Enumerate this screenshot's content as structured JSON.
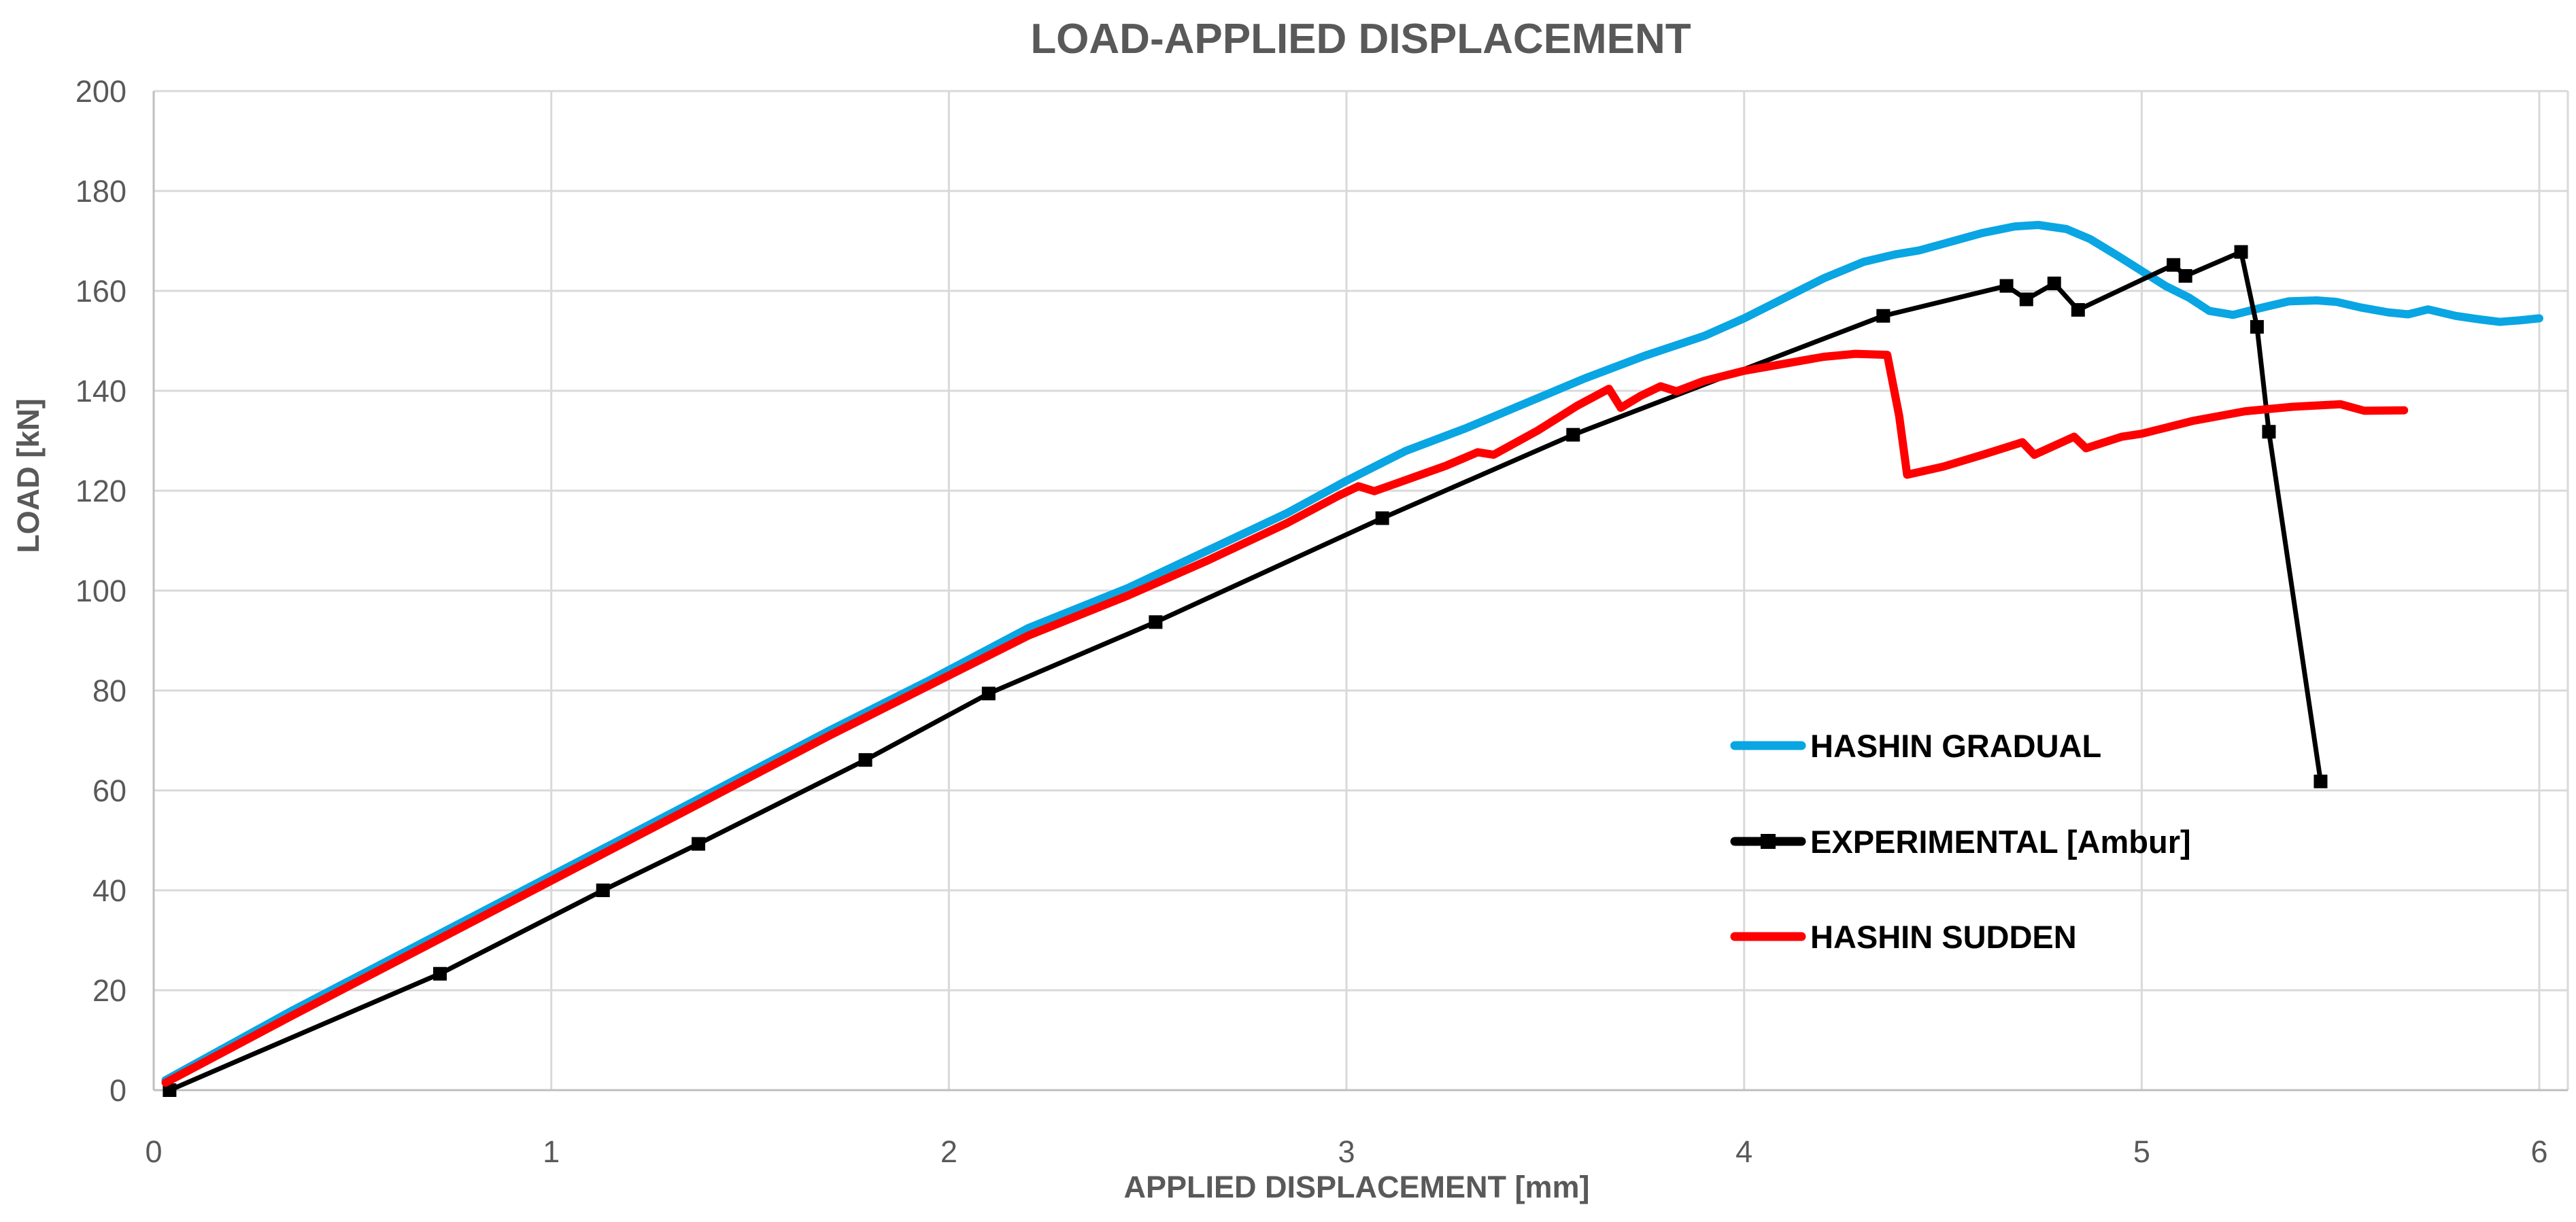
{
  "title": "LOAD-APPLIED DISPLACEMENT",
  "colors": {
    "background": "#ffffff",
    "gridline": "#d9d9d9",
    "axis_line": "#bfbfbf",
    "text_gray": "#595959",
    "series_blue": "#0aa5e3",
    "series_black": "#000000",
    "series_red": "#ff0000"
  },
  "chart_data": {
    "type": "line",
    "title": "LOAD-APPLIED DISPLACEMENT",
    "xlabel": "APPLIED DISPLACEMENT [mm]",
    "ylabel": "LOAD [kN]",
    "xlim": [
      0,
      6
    ],
    "ylim": [
      0,
      200
    ],
    "x_ticks": [
      0,
      1,
      2,
      3,
      4,
      5,
      6
    ],
    "y_ticks": [
      0,
      20,
      40,
      60,
      80,
      100,
      120,
      140,
      160,
      180,
      200
    ],
    "grid": true,
    "legend_position": "inside-right",
    "series": [
      {
        "name": "HASHIN GRADUAL",
        "color": "#0aa5e3",
        "marker": "none",
        "stroke_width": 12,
        "points": [
          [
            0.03,
            2
          ],
          [
            0.35,
            16
          ],
          [
            0.7,
            30.5
          ],
          [
            1.05,
            45
          ],
          [
            1.4,
            59.5
          ],
          [
            1.7,
            72
          ],
          [
            1.95,
            82
          ],
          [
            2.2,
            92.5
          ],
          [
            2.45,
            100.5
          ],
          [
            2.65,
            108
          ],
          [
            2.85,
            115.5
          ],
          [
            3.0,
            122
          ],
          [
            3.15,
            128
          ],
          [
            3.3,
            132.5
          ],
          [
            3.45,
            137.5
          ],
          [
            3.6,
            142.5
          ],
          [
            3.75,
            147
          ],
          [
            3.9,
            151
          ],
          [
            4.0,
            154.5
          ],
          [
            4.1,
            158.5
          ],
          [
            4.2,
            162.5
          ],
          [
            4.3,
            165.8
          ],
          [
            4.38,
            167.3
          ],
          [
            4.44,
            168.1
          ],
          [
            4.5,
            169.4
          ],
          [
            4.6,
            171.6
          ],
          [
            4.68,
            172.9
          ],
          [
            4.74,
            173.2
          ],
          [
            4.81,
            172.4
          ],
          [
            4.87,
            170.4
          ],
          [
            4.94,
            167
          ],
          [
            5.0,
            164
          ],
          [
            5.06,
            161
          ],
          [
            5.12,
            158.6
          ],
          [
            5.17,
            156
          ],
          [
            5.23,
            155.2
          ],
          [
            5.3,
            156.6
          ],
          [
            5.37,
            157.9
          ],
          [
            5.44,
            158.1
          ],
          [
            5.49,
            157.8
          ],
          [
            5.55,
            156.7
          ],
          [
            5.62,
            155.7
          ],
          [
            5.67,
            155.3
          ],
          [
            5.72,
            156.3
          ],
          [
            5.79,
            155
          ],
          [
            5.85,
            154.3
          ],
          [
            5.9,
            153.8
          ],
          [
            5.95,
            154.1
          ],
          [
            6.0,
            154.5
          ]
        ]
      },
      {
        "name": "EXPERIMENTAL [Ambur]",
        "color": "#000000",
        "marker": "square",
        "stroke_width": 7,
        "points": [
          [
            0.04,
            0
          ],
          [
            0.72,
            23.3
          ],
          [
            1.13,
            40
          ],
          [
            1.37,
            49.3
          ],
          [
            1.79,
            66.1
          ],
          [
            2.1,
            79.4
          ],
          [
            2.52,
            93.7
          ],
          [
            3.09,
            114.5
          ],
          [
            3.57,
            131.2
          ],
          [
            4.35,
            155
          ],
          [
            4.66,
            161
          ],
          [
            4.71,
            158.3
          ],
          [
            4.78,
            161.5
          ],
          [
            4.84,
            156.2
          ],
          [
            5.08,
            165.2
          ],
          [
            5.11,
            163
          ],
          [
            5.25,
            167.8
          ],
          [
            5.29,
            152.8
          ],
          [
            5.32,
            131.8
          ],
          [
            5.45,
            61.8
          ]
        ]
      },
      {
        "name": "HASHIN SUDDEN",
        "color": "#ff0000",
        "marker": "none",
        "stroke_width": 12,
        "points": [
          [
            0.03,
            1.5
          ],
          [
            0.35,
            15
          ],
          [
            0.7,
            29.5
          ],
          [
            1.05,
            44
          ],
          [
            1.4,
            58.5
          ],
          [
            1.7,
            71
          ],
          [
            1.95,
            81
          ],
          [
            2.2,
            91
          ],
          [
            2.45,
            99
          ],
          [
            2.65,
            106
          ],
          [
            2.85,
            113.5
          ],
          [
            2.98,
            119
          ],
          [
            3.03,
            120.9
          ],
          [
            3.07,
            119.9
          ],
          [
            3.12,
            121.3
          ],
          [
            3.25,
            125
          ],
          [
            3.33,
            127.7
          ],
          [
            3.37,
            127.2
          ],
          [
            3.48,
            132
          ],
          [
            3.58,
            137
          ],
          [
            3.66,
            140.4
          ],
          [
            3.69,
            136.6
          ],
          [
            3.74,
            139
          ],
          [
            3.79,
            140.9
          ],
          [
            3.83,
            139.9
          ],
          [
            3.9,
            142
          ],
          [
            4.0,
            144
          ],
          [
            4.1,
            145.4
          ],
          [
            4.2,
            146.8
          ],
          [
            4.28,
            147.4
          ],
          [
            4.36,
            147.2
          ],
          [
            4.39,
            135
          ],
          [
            4.41,
            123.2
          ],
          [
            4.5,
            124.8
          ],
          [
            4.6,
            127.2
          ],
          [
            4.7,
            129.7
          ],
          [
            4.73,
            127.2
          ],
          [
            4.83,
            130.8
          ],
          [
            4.86,
            128.5
          ],
          [
            4.95,
            130.8
          ],
          [
            5.0,
            131.4
          ],
          [
            5.13,
            134
          ],
          [
            5.26,
            135.9
          ],
          [
            5.38,
            136.8
          ],
          [
            5.5,
            137.3
          ],
          [
            5.56,
            136
          ],
          [
            5.66,
            136.1
          ]
        ]
      }
    ]
  }
}
